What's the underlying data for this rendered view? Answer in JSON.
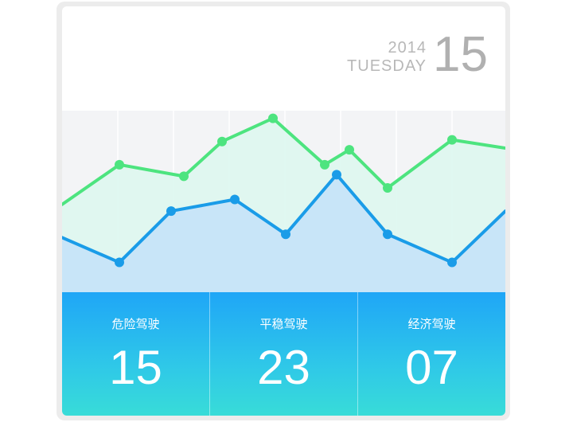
{
  "date": {
    "year": "2014",
    "weekday": "TUESDAY",
    "day": "15"
  },
  "stats": [
    {
      "label": "危险驾驶",
      "value": "15"
    },
    {
      "label": "平稳驾驶",
      "value": "23"
    },
    {
      "label": "经济驾驶",
      "value": "07"
    }
  ],
  "colors": {
    "green_line": "#4de47f",
    "green_fill": "#dcf7ef",
    "blue_line": "#1a9ce8",
    "blue_fill": "#c8e5f8",
    "chart_bg": "#f3f4f6",
    "stats_top": "#1fa6f7",
    "stats_bottom": "#38dcd8"
  },
  "chart_data": {
    "type": "area",
    "title": "",
    "xlabel": "",
    "ylabel": "",
    "ylim": [
      0,
      100
    ],
    "grid": "vertical",
    "series": [
      {
        "color": "#4de47f",
        "values": [
          53,
          77,
          70,
          91,
          105,
          77,
          86,
          63,
          92,
          87
        ],
        "x": [
          0,
          72,
          153,
          201,
          265,
          330,
          361,
          409,
          490,
          557
        ]
      },
      {
        "color": "#1a9ce8",
        "values": [
          33,
          18,
          49,
          56,
          35,
          71,
          35,
          18,
          49,
          49
        ],
        "x": [
          0,
          72,
          137,
          217,
          281,
          345,
          409,
          490,
          557,
          557
        ]
      }
    ]
  }
}
